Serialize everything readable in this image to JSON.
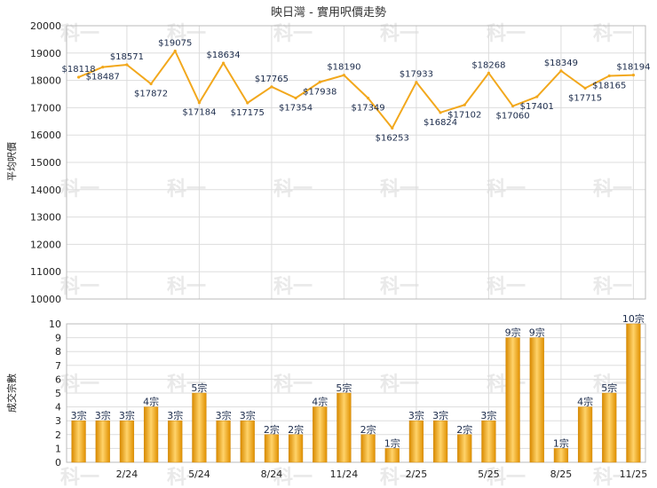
{
  "title": "映日灣 - 實用呎價走勢",
  "top_ylabel": "平均呎價",
  "bottom_ylabel": "成交宗數",
  "label_prefix": "$",
  "unit_suffix": "宗",
  "watermark_text": "科一",
  "colors": {
    "line": "#f2a81d",
    "bar": "#f2a81d",
    "grid": "#dddddd",
    "label": "#1a2a4a"
  },
  "chart_data": [
    {
      "type": "line",
      "title": "映日灣 - 實用呎價走勢",
      "ylabel": "平均呎價",
      "ylim": [
        10000,
        20000
      ],
      "yticks": [
        10000,
        11000,
        12000,
        13000,
        14000,
        15000,
        16000,
        17000,
        18000,
        19000,
        20000
      ],
      "grid": true,
      "values": [
        18118,
        18487,
        18571,
        17872,
        19075,
        17184,
        18634,
        17175,
        17765,
        17354,
        17938,
        18190,
        17349,
        16253,
        17933,
        16824,
        17102,
        18268,
        17060,
        17401,
        18349,
        17715,
        18165,
        18194
      ]
    },
    {
      "type": "bar",
      "ylabel": "成交宗數",
      "ylim": [
        0,
        10
      ],
      "yticks": [
        0,
        1,
        2,
        3,
        4,
        5,
        6,
        7,
        8,
        9,
        10
      ],
      "grid": true,
      "values": [
        3,
        3,
        3,
        4,
        3,
        5,
        3,
        3,
        2,
        2,
        4,
        5,
        2,
        1,
        3,
        3,
        2,
        3,
        9,
        9,
        1,
        4,
        5,
        10
      ],
      "xticks": [
        "2/24",
        "5/24",
        "8/24",
        "11/24",
        "2/25",
        "5/25",
        "8/25",
        "11/25"
      ]
    }
  ]
}
